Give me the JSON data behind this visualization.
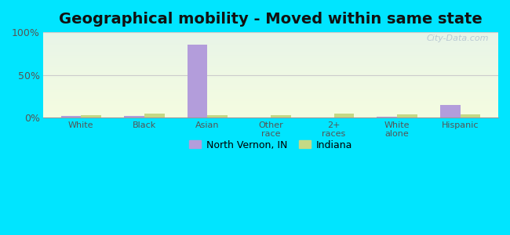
{
  "title": "Geographical mobility - Moved within same state",
  "categories": [
    "White",
    "Black",
    "Asian",
    "Other\nrace",
    "2+\nraces",
    "White\nalone",
    "Hispanic"
  ],
  "north_vernon": [
    2.0,
    2.5,
    85.0,
    0.0,
    0.0,
    1.0,
    15.0
  ],
  "indiana": [
    3.5,
    5.0,
    3.5,
    3.5,
    4.5,
    4.0,
    4.0
  ],
  "color_nv": "#b39ddb",
  "color_indiana": "#c5d985",
  "legend_nv": "North Vernon, IN",
  "legend_indiana": "Indiana",
  "background_color": "#00e5ff",
  "ylim": [
    0,
    100
  ],
  "yticks": [
    0,
    50,
    100
  ],
  "ytick_labels": [
    "0%",
    "50%",
    "100%"
  ],
  "bar_width": 0.32,
  "title_fontsize": 14,
  "watermark": "City-Data.com",
  "grid_color": "#cccccc",
  "tick_color": "#555555"
}
